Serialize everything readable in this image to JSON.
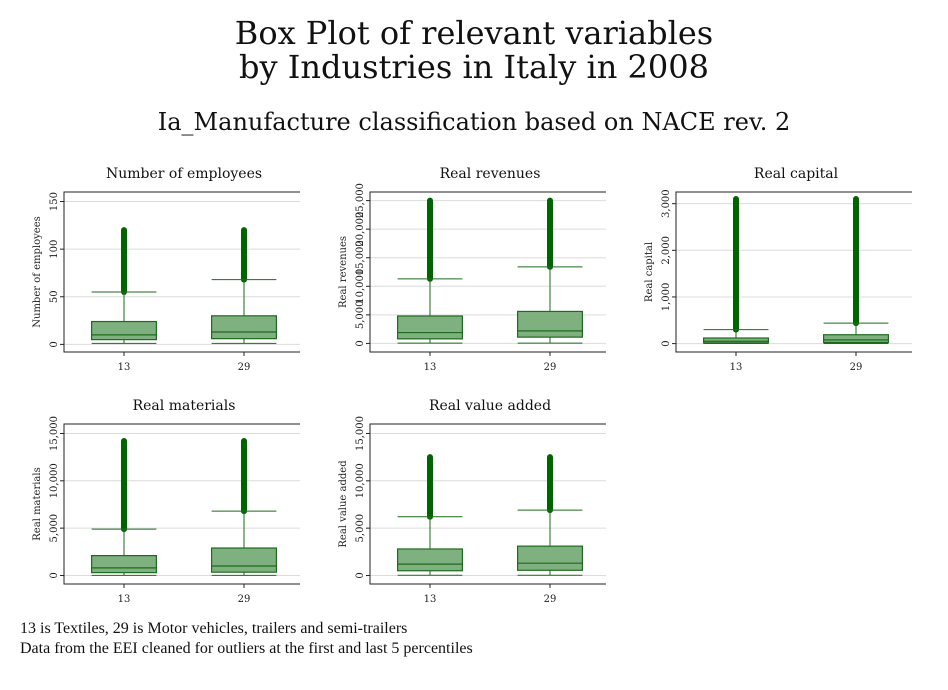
{
  "title_line1": "Box Plot of relevant variables",
  "title_line2": "by Industries in Italy in 2008",
  "subtitle": "Ia_Manufacture classification based on NACE rev. 2",
  "footnote1": "13 is Textiles, 29 is Motor vehicles, trailers and semi-trailers",
  "footnote2": "Data from the EEI cleaned for outliers at the first and last 5 percentiles",
  "colors": {
    "box_fill": "#7fb07f",
    "box_stroke": "#1e6a1e",
    "outlier": "#006400",
    "grid": "#dcdcdc"
  },
  "chart_data": [
    {
      "type": "box",
      "title": "Number of employees",
      "ylabel": "Number of employees",
      "categories": [
        "13",
        "29"
      ],
      "ylim": [
        -8,
        160
      ],
      "yticks": [
        0,
        50,
        100,
        150
      ],
      "ytick_labels": [
        "0",
        "50",
        "100",
        "150"
      ],
      "boxes": [
        {
          "min": 1,
          "q1": 5,
          "median": 10,
          "q3": 24,
          "whisker_high": 55,
          "max_outlier": 120
        },
        {
          "min": 1,
          "q1": 6,
          "median": 13,
          "q3": 30,
          "whisker_high": 68,
          "max_outlier": 120
        }
      ]
    },
    {
      "type": "box",
      "title": "Real revenues",
      "ylabel": "Real revenues",
      "categories": [
        "13",
        "29"
      ],
      "ylim": [
        -1500,
        26500
      ],
      "yticks": [
        0,
        5000,
        10000,
        15000,
        20000,
        25000
      ],
      "ytick_labels": [
        "0",
        "5,000",
        "10,000",
        "15,000",
        "20,000",
        "25,000"
      ],
      "boxes": [
        {
          "min": 50,
          "q1": 800,
          "median": 1900,
          "q3": 4800,
          "whisker_high": 11300,
          "max_outlier": 25000
        },
        {
          "min": 50,
          "q1": 1100,
          "median": 2200,
          "q3": 5600,
          "whisker_high": 13400,
          "max_outlier": 25000
        }
      ]
    },
    {
      "type": "box",
      "title": "Real capital",
      "ylabel": "Real capital",
      "categories": [
        "13",
        "29"
      ],
      "ylim": [
        -180,
        3250
      ],
      "yticks": [
        0,
        1000,
        2000,
        3000
      ],
      "ytick_labels": [
        "0",
        "1,000",
        "2,000",
        "3,000"
      ],
      "boxes": [
        {
          "min": 2,
          "q1": 15,
          "median": 50,
          "q3": 120,
          "whisker_high": 300,
          "max_outlier": 3100
        },
        {
          "min": 2,
          "q1": 25,
          "median": 80,
          "q3": 190,
          "whisker_high": 440,
          "max_outlier": 3100
        }
      ]
    },
    {
      "type": "box",
      "title": "Real materials",
      "ylabel": "Real materials",
      "categories": [
        "13",
        "29"
      ],
      "ylim": [
        -900,
        16000
      ],
      "yticks": [
        0,
        5000,
        10000,
        15000
      ],
      "ytick_labels": [
        "0",
        "5,000",
        "10,000",
        "15,000"
      ],
      "boxes": [
        {
          "min": 10,
          "q1": 300,
          "median": 800,
          "q3": 2100,
          "whisker_high": 4900,
          "max_outlier": 14200
        },
        {
          "min": 10,
          "q1": 350,
          "median": 1000,
          "q3": 2900,
          "whisker_high": 6800,
          "max_outlier": 14200
        }
      ]
    },
    {
      "type": "box",
      "title": "Real value added",
      "ylabel": "Real value added",
      "categories": [
        "13",
        "29"
      ],
      "ylim": [
        -900,
        16000
      ],
      "yticks": [
        0,
        5000,
        10000,
        15000
      ],
      "ytick_labels": [
        "0",
        "5,000",
        "10,000",
        "15,000"
      ],
      "boxes": [
        {
          "min": 30,
          "q1": 500,
          "median": 1200,
          "q3": 2800,
          "whisker_high": 6200,
          "max_outlier": 12500
        },
        {
          "min": 30,
          "q1": 550,
          "median": 1300,
          "q3": 3100,
          "whisker_high": 6900,
          "max_outlier": 12500
        }
      ]
    }
  ]
}
